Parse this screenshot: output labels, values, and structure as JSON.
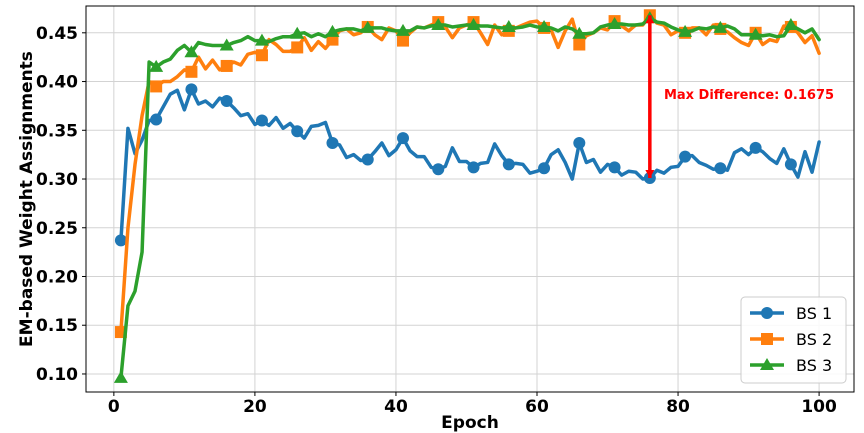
{
  "chart_data": {
    "type": "line",
    "xlabel": "Epoch",
    "ylabel": "EM-based Weight Assignments",
    "xlim": [
      -3.95,
      104.95
    ],
    "ylim": [
      0.0815,
      0.4775
    ],
    "xticks": [
      "0",
      "20",
      "40",
      "60",
      "80",
      "100"
    ],
    "yticks": [
      "0.10",
      "0.15",
      "0.20",
      "0.25",
      "0.30",
      "0.35",
      "0.40",
      "0.45"
    ],
    "grid": true,
    "legend_position": "bottom-right",
    "marker_every": 5,
    "series": [
      {
        "name": "BS 1",
        "color": "#1f77b4",
        "marker": "circle",
        "x": [
          1,
          2,
          3,
          4,
          5,
          6,
          7,
          8,
          9,
          10,
          11,
          12,
          13,
          14,
          15,
          16,
          17,
          18,
          19,
          20,
          21,
          22,
          23,
          24,
          25,
          26,
          27,
          28,
          29,
          30,
          31,
          32,
          33,
          34,
          35,
          36,
          37,
          38,
          39,
          40,
          41,
          42,
          43,
          44,
          45,
          46,
          47,
          48,
          49,
          50,
          51,
          52,
          53,
          54,
          55,
          56,
          57,
          58,
          59,
          60,
          61,
          62,
          63,
          64,
          65,
          66,
          67,
          68,
          69,
          70,
          71,
          72,
          73,
          74,
          75,
          76,
          77,
          78,
          79,
          80,
          81,
          82,
          83,
          84,
          85,
          86,
          87,
          88,
          89,
          90,
          91,
          92,
          93,
          94,
          95,
          96,
          97,
          98,
          99,
          100
        ],
        "values": [
          0.237,
          0.352,
          0.326,
          0.34,
          0.36,
          0.361,
          0.374,
          0.387,
          0.391,
          0.371,
          0.392,
          0.377,
          0.38,
          0.374,
          0.383,
          0.38,
          0.373,
          0.365,
          0.367,
          0.356,
          0.36,
          0.355,
          0.363,
          0.352,
          0.357,
          0.349,
          0.342,
          0.354,
          0.355,
          0.358,
          0.337,
          0.335,
          0.322,
          0.325,
          0.319,
          0.32,
          0.328,
          0.337,
          0.324,
          0.33,
          0.342,
          0.329,
          0.323,
          0.323,
          0.312,
          0.31,
          0.313,
          0.332,
          0.318,
          0.318,
          0.312,
          0.316,
          0.317,
          0.336,
          0.324,
          0.315,
          0.316,
          0.315,
          0.306,
          0.308,
          0.311,
          0.325,
          0.33,
          0.317,
          0.3,
          0.337,
          0.317,
          0.32,
          0.307,
          0.315,
          0.312,
          0.304,
          0.308,
          0.307,
          0.3,
          0.301,
          0.309,
          0.306,
          0.312,
          0.313,
          0.323,
          0.324,
          0.317,
          0.314,
          0.31,
          0.311,
          0.309,
          0.327,
          0.331,
          0.325,
          0.332,
          0.328,
          0.321,
          0.316,
          0.331,
          0.315,
          0.302,
          0.328,
          0.307,
          0.338
        ]
      },
      {
        "name": "BS 2",
        "color": "#ff7f0e",
        "marker": "square",
        "x": [
          1,
          2,
          3,
          4,
          5,
          6,
          7,
          8,
          9,
          10,
          11,
          12,
          13,
          14,
          15,
          16,
          17,
          18,
          19,
          20,
          21,
          22,
          23,
          24,
          25,
          26,
          27,
          28,
          29,
          30,
          31,
          32,
          33,
          34,
          35,
          36,
          37,
          38,
          39,
          40,
          41,
          42,
          43,
          44,
          45,
          46,
          47,
          48,
          49,
          50,
          51,
          52,
          53,
          54,
          55,
          56,
          57,
          58,
          59,
          60,
          61,
          62,
          63,
          64,
          65,
          66,
          67,
          68,
          69,
          70,
          71,
          72,
          73,
          74,
          75,
          76,
          77,
          78,
          79,
          80,
          81,
          82,
          83,
          84,
          85,
          86,
          87,
          88,
          89,
          90,
          91,
          92,
          93,
          94,
          95,
          96,
          97,
          98,
          99,
          100
        ],
        "values": [
          0.143,
          0.25,
          0.315,
          0.365,
          0.4,
          0.395,
          0.4,
          0.4,
          0.405,
          0.412,
          0.41,
          0.425,
          0.413,
          0.422,
          0.412,
          0.416,
          0.42,
          0.417,
          0.428,
          0.43,
          0.427,
          0.443,
          0.438,
          0.431,
          0.431,
          0.435,
          0.445,
          0.432,
          0.441,
          0.434,
          0.443,
          0.452,
          0.454,
          0.448,
          0.45,
          0.456,
          0.448,
          0.443,
          0.455,
          0.452,
          0.442,
          0.45,
          0.456,
          0.455,
          0.458,
          0.461,
          0.456,
          0.445,
          0.455,
          0.458,
          0.461,
          0.45,
          0.438,
          0.458,
          0.448,
          0.452,
          0.455,
          0.458,
          0.461,
          0.462,
          0.455,
          0.453,
          0.435,
          0.452,
          0.464,
          0.438,
          0.447,
          0.45,
          0.455,
          0.453,
          0.462,
          0.457,
          0.452,
          0.458,
          0.458,
          0.468,
          0.46,
          0.458,
          0.448,
          0.452,
          0.45,
          0.455,
          0.455,
          0.448,
          0.458,
          0.454,
          0.451,
          0.445,
          0.44,
          0.437,
          0.45,
          0.438,
          0.443,
          0.441,
          0.457,
          0.456,
          0.45,
          0.44,
          0.447,
          0.429
        ]
      },
      {
        "name": "BS 3",
        "color": "#2ca02c",
        "marker": "triangle",
        "x": [
          1,
          2,
          3,
          4,
          5,
          6,
          7,
          8,
          9,
          10,
          11,
          12,
          13,
          14,
          15,
          16,
          17,
          18,
          19,
          20,
          21,
          22,
          23,
          24,
          25,
          26,
          27,
          28,
          29,
          30,
          31,
          32,
          33,
          34,
          35,
          36,
          37,
          38,
          39,
          40,
          41,
          42,
          43,
          44,
          45,
          46,
          47,
          48,
          49,
          50,
          51,
          52,
          53,
          54,
          55,
          56,
          57,
          58,
          59,
          60,
          61,
          62,
          63,
          64,
          65,
          66,
          67,
          68,
          69,
          70,
          71,
          72,
          73,
          74,
          75,
          76,
          77,
          78,
          79,
          80,
          81,
          82,
          83,
          84,
          85,
          86,
          87,
          88,
          89,
          90,
          91,
          92,
          93,
          94,
          95,
          96,
          97,
          98,
          99,
          100
        ],
        "values": [
          0.096,
          0.17,
          0.185,
          0.225,
          0.42,
          0.415,
          0.42,
          0.423,
          0.432,
          0.437,
          0.43,
          0.44,
          0.438,
          0.437,
          0.437,
          0.437,
          0.44,
          0.442,
          0.446,
          0.442,
          0.442,
          0.441,
          0.444,
          0.446,
          0.446,
          0.449,
          0.45,
          0.446,
          0.449,
          0.446,
          0.451,
          0.453,
          0.454,
          0.454,
          0.452,
          0.455,
          0.455,
          0.455,
          0.453,
          0.452,
          0.452,
          0.452,
          0.456,
          0.455,
          0.457,
          0.458,
          0.458,
          0.456,
          0.457,
          0.458,
          0.458,
          0.457,
          0.457,
          0.456,
          0.455,
          0.456,
          0.455,
          0.456,
          0.458,
          0.456,
          0.456,
          0.455,
          0.452,
          0.456,
          0.454,
          0.449,
          0.449,
          0.45,
          0.456,
          0.458,
          0.459,
          0.459,
          0.458,
          0.458,
          0.459,
          0.465,
          0.461,
          0.46,
          0.456,
          0.453,
          0.451,
          0.452,
          0.455,
          0.454,
          0.456,
          0.455,
          0.457,
          0.454,
          0.448,
          0.448,
          0.448,
          0.447,
          0.448,
          0.446,
          0.447,
          0.458,
          0.454,
          0.45,
          0.454,
          0.443
        ]
      }
    ],
    "annotations": [
      {
        "text": "Max Difference: 0.1675",
        "color": "#ff0000",
        "x": 76,
        "y_top": 0.468,
        "y_bottom": 0.301,
        "text_x": 78,
        "text_y": 0.382
      }
    ]
  }
}
